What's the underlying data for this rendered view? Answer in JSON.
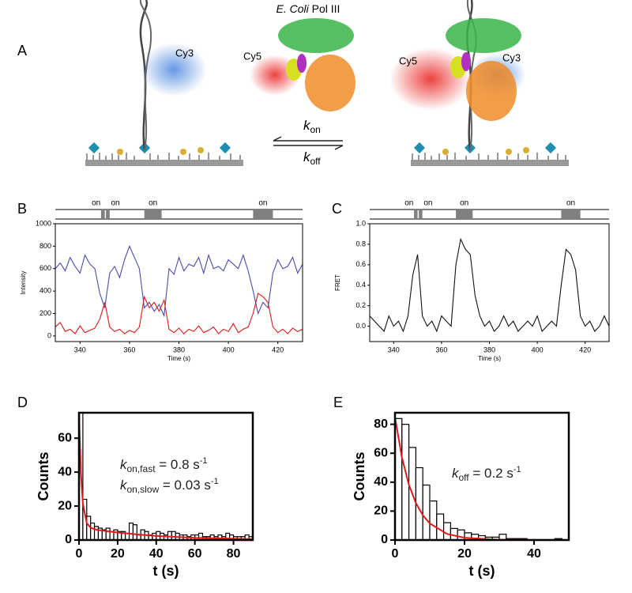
{
  "panel_a": {
    "label": "A",
    "title_italic": "E. Coli",
    "title_rest": " Pol III",
    "dyes": [
      "Cy3",
      "Cy5",
      "Cy5",
      "Cy3"
    ],
    "k_on": {
      "k": "k",
      "sub": "on"
    },
    "k_off": {
      "k": "k",
      "sub": "off"
    }
  },
  "chart_data": [
    {
      "type": "line",
      "panel": "B",
      "ylabel": "Intensity",
      "xlabel": "Time (s)",
      "xlim": [
        330,
        430
      ],
      "ylim": [
        -50,
        1000
      ],
      "xticks": [
        340,
        360,
        380,
        400,
        420
      ],
      "yticks": [
        0,
        200,
        400,
        600,
        800,
        1000
      ],
      "states": [
        {
          "label": "on",
          "start": 348.5,
          "end": 350
        },
        {
          "label": "on",
          "start": 350.5,
          "end": 352
        },
        {
          "label": "on",
          "start": 366,
          "end": 373
        },
        {
          "label": "on",
          "start": 410,
          "end": 418
        }
      ],
      "x": [
        330,
        332,
        334,
        336,
        338,
        340,
        342,
        344,
        346,
        348,
        350,
        352,
        354,
        356,
        358,
        360,
        362,
        364,
        366,
        368,
        370,
        372,
        374,
        376,
        378,
        380,
        382,
        384,
        386,
        388,
        390,
        392,
        394,
        396,
        398,
        400,
        402,
        404,
        406,
        408,
        410,
        412,
        414,
        416,
        418,
        420,
        422,
        424,
        426,
        428,
        430
      ],
      "series": [
        {
          "color": "#4b4bb0",
          "values": [
            600,
            650,
            580,
            700,
            620,
            560,
            720,
            640,
            600,
            380,
            250,
            560,
            620,
            520,
            680,
            800,
            700,
            600,
            250,
            300,
            220,
            280,
            180,
            600,
            550,
            700,
            580,
            640,
            620,
            700,
            560,
            720,
            600,
            620,
            580,
            680,
            640,
            600,
            720,
            580,
            400,
            200,
            300,
            250,
            560,
            680,
            600,
            620,
            700,
            560,
            640
          ]
        },
        {
          "color": "#e0191a",
          "values": [
            80,
            120,
            40,
            60,
            20,
            90,
            30,
            50,
            70,
            150,
            300,
            80,
            40,
            60,
            20,
            50,
            30,
            80,
            350,
            250,
            300,
            220,
            320,
            60,
            30,
            70,
            20,
            60,
            40,
            90,
            30,
            50,
            80,
            20,
            60,
            40,
            110,
            30,
            60,
            80,
            200,
            380,
            350,
            300,
            80,
            30,
            60,
            20,
            70,
            40,
            60
          ]
        }
      ]
    },
    {
      "type": "line",
      "panel": "C",
      "ylabel": "FRET",
      "xlabel": "Time (s)",
      "xlim": [
        330,
        430
      ],
      "ylim": [
        -0.15,
        1.0
      ],
      "xticks": [
        340,
        360,
        380,
        400,
        420
      ],
      "yticks": [
        {
          "value": 0,
          "label": "0.0"
        },
        0.2,
        0.4,
        0.6,
        0.8,
        {
          "value": 1,
          "label": "1.0"
        }
      ],
      "states": [
        {
          "label": "on",
          "start": 348.5,
          "end": 350
        },
        {
          "label": "on",
          "start": 350.5,
          "end": 352
        },
        {
          "label": "on",
          "start": 366,
          "end": 373
        },
        {
          "label": "on",
          "start": 410,
          "end": 418
        }
      ],
      "x": [
        330,
        332,
        334,
        336,
        338,
        340,
        342,
        344,
        346,
        348,
        350,
        352,
        354,
        356,
        358,
        360,
        362,
        364,
        366,
        368,
        370,
        372,
        374,
        376,
        378,
        380,
        382,
        384,
        386,
        388,
        390,
        392,
        394,
        396,
        398,
        400,
        402,
        404,
        406,
        408,
        410,
        412,
        414,
        416,
        418,
        420,
        422,
        424,
        426,
        428,
        430
      ],
      "series": [
        {
          "color": "#111111",
          "values": [
            0.1,
            0.05,
            0.0,
            -0.05,
            0.1,
            0.0,
            0.05,
            -0.05,
            0.1,
            0.5,
            0.7,
            0.1,
            0.0,
            0.05,
            -0.05,
            0.1,
            0.05,
            0.0,
            0.6,
            0.85,
            0.75,
            0.7,
            0.3,
            0.1,
            0.0,
            0.05,
            -0.05,
            0.0,
            0.1,
            0.0,
            0.05,
            -0.05,
            0.0,
            0.05,
            0.0,
            0.1,
            -0.05,
            0.0,
            0.05,
            0.0,
            0.4,
            0.75,
            0.7,
            0.55,
            0.1,
            0.0,
            0.05,
            -0.05,
            0.0,
            0.1,
            0.0
          ]
        }
      ]
    },
    {
      "type": "histogram",
      "panel": "D",
      "ylabel": "Counts",
      "xlabel": "t (s)",
      "xlim": [
        0,
        90
      ],
      "ylim": [
        0,
        75
      ],
      "xticks": [
        0,
        20,
        40,
        60,
        80
      ],
      "yticks": [
        0,
        20,
        40,
        60
      ],
      "bins": [
        0,
        2,
        4,
        6,
        8,
        10,
        12,
        14,
        16,
        18,
        20,
        22,
        24,
        26,
        28,
        30,
        32,
        34,
        36,
        38,
        40,
        42,
        44,
        46,
        48,
        50,
        52,
        54,
        56,
        58,
        60,
        62,
        64,
        66,
        68,
        70,
        72,
        74,
        76,
        78,
        80,
        82,
        84,
        86,
        88,
        90
      ],
      "counts": [
        75,
        24,
        14,
        10,
        8,
        7,
        6,
        7,
        5,
        6,
        5,
        5,
        4,
        10,
        9,
        3,
        6,
        5,
        3,
        4,
        5,
        4,
        3,
        5,
        5,
        4,
        3,
        3,
        2,
        3,
        3,
        4,
        2,
        2,
        3,
        2,
        3,
        2,
        4,
        3,
        2,
        2,
        2,
        3,
        2
      ],
      "fit": {
        "color": "#e0191a",
        "x": [
          0,
          1,
          2,
          4,
          6,
          8,
          10,
          15,
          20,
          30,
          40,
          60,
          90
        ],
        "values": [
          75,
          39.2,
          21.6,
          10,
          7.3,
          6.4,
          5.9,
          5.1,
          4.4,
          3.3,
          2.4,
          1.3,
          0.5
        ]
      },
      "annotations": [
        {
          "k": "k",
          "sub": "on,fast",
          "text": " = 0.8 s",
          "sup": "-1"
        },
        {
          "k": "k",
          "sub": "on,slow",
          "text": " = 0.03 s",
          "sup": "-1"
        }
      ]
    },
    {
      "type": "histogram",
      "panel": "E",
      "ylabel": "Counts",
      "xlabel": "t (s)",
      "xlim": [
        0,
        50
      ],
      "ylim": [
        0,
        88
      ],
      "xticks": [
        0,
        20,
        40
      ],
      "yticks": [
        0,
        20,
        40,
        60,
        80
      ],
      "bins": [
        0,
        2,
        4,
        6,
        8,
        10,
        12,
        14,
        16,
        18,
        20,
        22,
        24,
        26,
        28,
        30,
        32,
        34,
        36,
        38,
        40,
        42,
        44,
        46,
        48,
        50
      ],
      "counts": [
        84,
        80,
        64,
        50,
        38,
        27,
        18,
        12,
        8,
        7,
        5,
        4,
        3,
        2,
        2,
        4,
        1,
        1,
        1,
        0,
        0,
        0,
        0,
        1,
        0
      ],
      "fit": {
        "color": "#e0191a",
        "x": [
          0,
          2,
          4,
          6,
          8,
          10,
          15,
          20,
          30,
          50
        ],
        "values": [
          85,
          57,
          38.2,
          25.6,
          17.2,
          11.5,
          4.2,
          1.6,
          0.2,
          0
        ]
      },
      "annotations": [
        {
          "k": "k",
          "sub": "off",
          "text": " = 0.2 s",
          "sup": "-1"
        }
      ]
    }
  ]
}
